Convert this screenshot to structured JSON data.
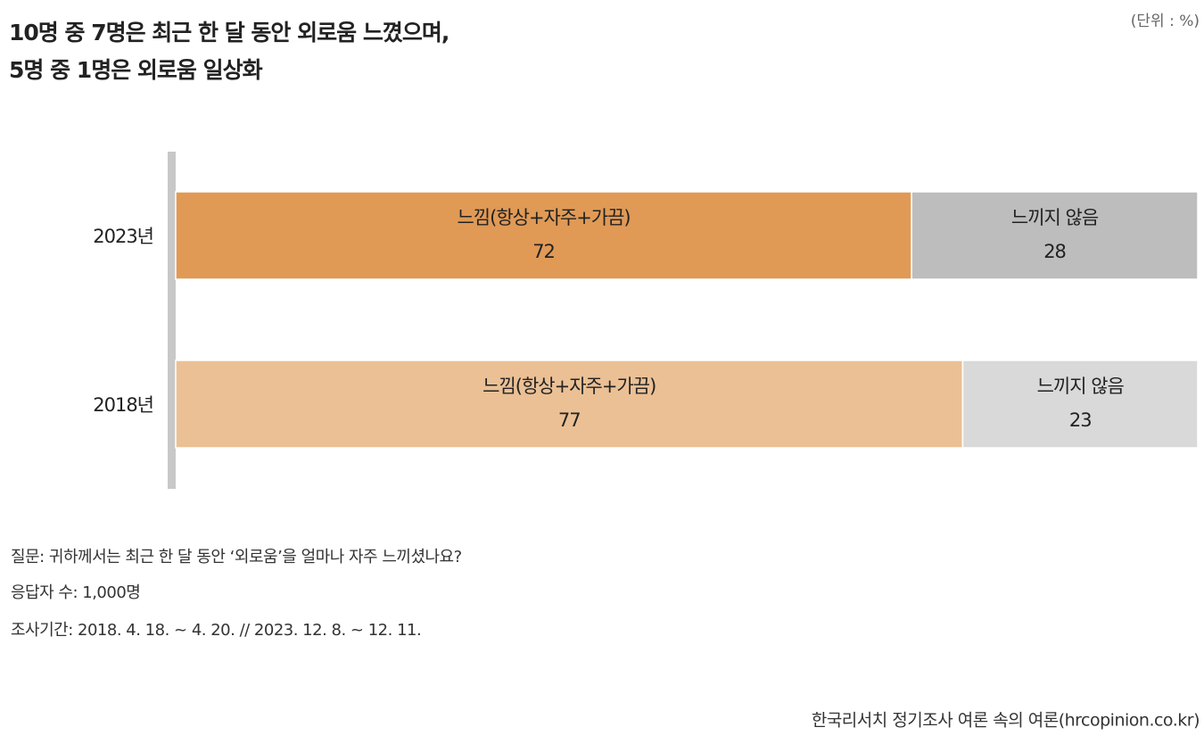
{
  "chart_data": {
    "type": "bar",
    "orientation": "horizontal",
    "stacked": true,
    "title": [
      "10명 중 7명은 최근 한 달 동안 외로움 느꼈으며,",
      "5명 중 1명은 외로움 일상화"
    ],
    "unit": "(단위 : %)",
    "categories": [
      "2023년",
      "2018년"
    ],
    "series": [
      {
        "name": "느낌(항상+자주+가끔)",
        "colors": [
          "#e09a56",
          "#ebc095"
        ],
        "values": [
          72,
          77
        ]
      },
      {
        "name": "느끼지 않음",
        "colors": [
          "#bdbdbd",
          "#d9d9d9"
        ],
        "values": [
          28,
          23
        ]
      }
    ],
    "notes": [
      "질문: 귀하께서는 최근 한 달 동안 ‘외로움’을 얼마나 자주 느끼셨나요?",
      "응답자 수: 1,000명",
      "조사기간: 2018. 4. 18. ~ 4. 20. // 2023. 12. 8. ~ 12. 11."
    ],
    "source": "한국리서치 정기조사 여론 속의 여론(hrcopinion.co.kr)"
  }
}
